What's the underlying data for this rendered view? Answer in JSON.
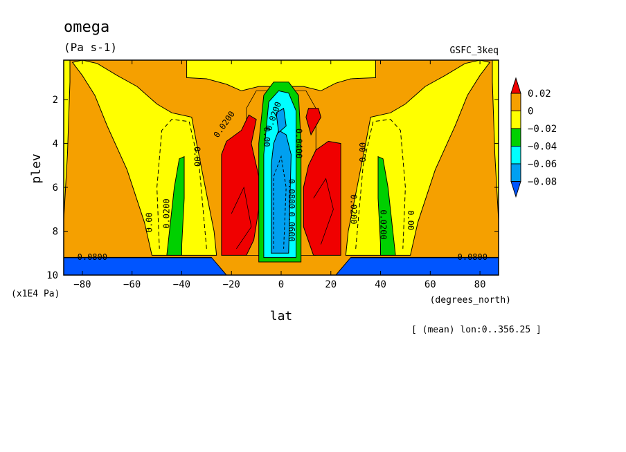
{
  "chart_data": {
    "type": "heatmap",
    "title": "omega",
    "units": "(Pa s-1)",
    "source": "GSFC_3keq",
    "xlabel": "lat",
    "x_units": "(degrees_north)",
    "ylabel": "plev",
    "y_units": "(x1E4 Pa)",
    "footnote": "[ (mean) lon:0..356.25 ]",
    "xlim": [
      -87.5,
      87.5
    ],
    "ylim": [
      10,
      0.2
    ],
    "x_ticks": [
      -80,
      -60,
      -40,
      -20,
      0,
      20,
      40,
      60,
      80
    ],
    "y_ticks": [
      2,
      4,
      6,
      8,
      10
    ],
    "x_tick_labels": [
      "−80",
      "−60",
      "−40",
      "−20",
      "0",
      "20",
      "40",
      "60",
      "80"
    ],
    "y_tick_labels": [
      "2",
      "4",
      "6",
      "8",
      "10"
    ],
    "colorbar": {
      "levels": [
        0.02,
        0,
        -0.02,
        -0.04,
        -0.06,
        -0.08
      ],
      "labels": [
        "0.02",
        "0",
        "−0.02",
        "−0.04",
        "−0.06",
        "−0.08"
      ],
      "colors": [
        "#f00000",
        "#f5a000",
        "#ffff00",
        "#00d000",
        "#00ffff",
        "#00a0f0",
        "#0055ff"
      ]
    },
    "contour_labels": [
      {
        "text": "0.0200",
        "lat": -22,
        "plev": 3.2,
        "angle": -55
      },
      {
        "text": "0.00",
        "lat": -35,
        "plev": 4.6,
        "angle": 90
      },
      {
        "text": "0.00",
        "lat": -52,
        "plev": 7.6,
        "angle": -90
      },
      {
        "text": "0.0200",
        "lat": -45,
        "plev": 7.2,
        "angle": -90
      },
      {
        "text": "0.0200",
        "lat": 28,
        "plev": 7,
        "angle": 90
      },
      {
        "text": "0.00",
        "lat": 34,
        "plev": 4.4,
        "angle": -90
      },
      {
        "text": "0.0200",
        "lat": 40,
        "plev": 7.7,
        "angle": 90
      },
      {
        "text": "0.00",
        "lat": 51,
        "plev": 7.5,
        "angle": 90
      },
      {
        "text": "0.0800",
        "lat": -76,
        "plev": 9.3,
        "angle": 0
      },
      {
        "text": "0.0800",
        "lat": 77,
        "plev": 9.3,
        "angle": 0
      },
      {
        "text": "0.00",
        "lat": -7,
        "plev": 3.7,
        "angle": 90
      },
      {
        "text": "0.0200",
        "lat": -2,
        "plev": 2.8,
        "angle": -70
      },
      {
        "text": "0.0400",
        "lat": 6,
        "plev": 4,
        "angle": 90
      },
      {
        "text": "0.0800",
        "lat": 3,
        "plev": 6.3,
        "angle": 90
      },
      {
        "text": "0.0600",
        "lat": 3,
        "plev": 7.8,
        "angle": 90
      }
    ]
  }
}
